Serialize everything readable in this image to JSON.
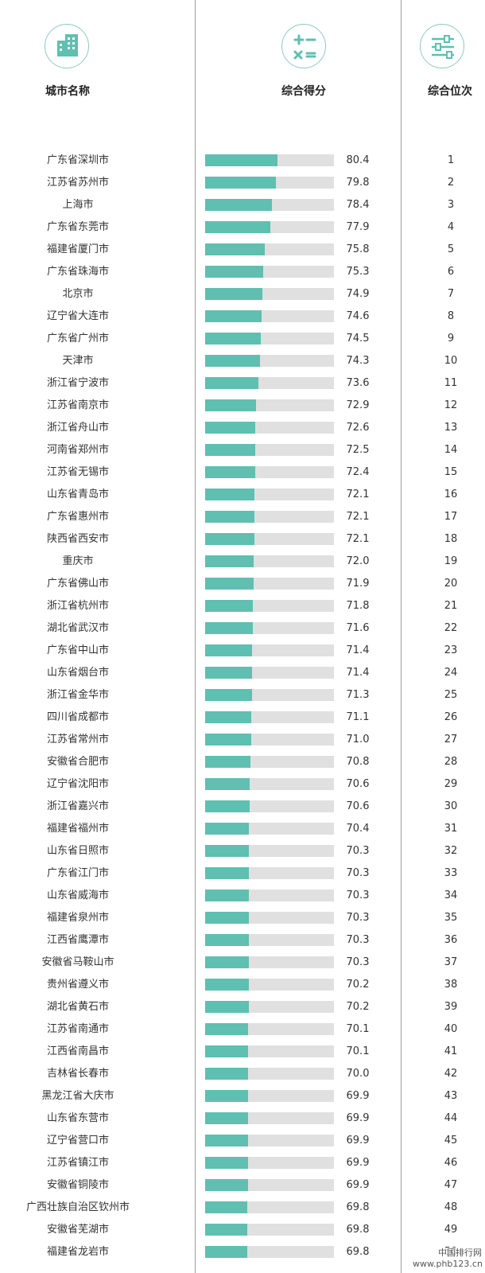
{
  "header": {
    "city_label": "城市名称",
    "score_label": "综合得分",
    "rank_label": "综合位次",
    "city_icon": "building-icon",
    "score_icon": "calculator-icon",
    "rank_icon": "sliders-icon"
  },
  "colors": {
    "bar": "#5fbfb0",
    "bar_background": "#e0e0e0",
    "icon": "#5fbfb0"
  },
  "watermark": {
    "line1": "中国排行网",
    "line2": "www.phb123.cn"
  },
  "chart_data": {
    "type": "bar",
    "orientation": "horizontal",
    "title": "",
    "xlabel": "综合得分",
    "ylabel": "城市名称",
    "xlim": [
      55,
      100
    ],
    "categories": [
      "广东省深圳市",
      "江苏省苏州市",
      "上海市",
      "广东省东莞市",
      "福建省厦门市",
      "广东省珠海市",
      "北京市",
      "辽宁省大连市",
      "广东省广州市",
      "天津市",
      "浙江省宁波市",
      "江苏省南京市",
      "浙江省舟山市",
      "河南省郑州市",
      "江苏省无锡市",
      "山东省青岛市",
      "广东省惠州市",
      "陕西省西安市",
      "重庆市",
      "广东省佛山市",
      "浙江省杭州市",
      "湖北省武汉市",
      "广东省中山市",
      "山东省烟台市",
      "浙江省金华市",
      "四川省成都市",
      "江苏省常州市",
      "安徽省合肥市",
      "辽宁省沈阳市",
      "浙江省嘉兴市",
      "福建省福州市",
      "山东省日照市",
      "广东省江门市",
      "山东省威海市",
      "福建省泉州市",
      "江西省鹰潭市",
      "安徽省马鞍山市",
      "贵州省遵义市",
      "湖北省黄石市",
      "江苏省南通市",
      "江西省南昌市",
      "吉林省长春市",
      "黑龙江省大庆市",
      "山东省东营市",
      "辽宁省营口市",
      "江苏省镇江市",
      "安徽省铜陵市",
      "广西壮族自治区钦州市",
      "安徽省芜湖市",
      "福建省龙岩市"
    ],
    "values": [
      "80.4",
      "79.8",
      "78.4",
      "77.9",
      "75.8",
      "75.3",
      "74.9",
      "74.6",
      "74.5",
      "74.3",
      "73.6",
      "72.9",
      "72.6",
      "72.5",
      "72.4",
      "72.1",
      "72.1",
      "72.1",
      "72.0",
      "71.9",
      "71.8",
      "71.6",
      "71.4",
      "71.4",
      "71.3",
      "71.1",
      "71.0",
      "70.8",
      "70.6",
      "70.6",
      "70.4",
      "70.3",
      "70.3",
      "70.3",
      "70.3",
      "70.3",
      "70.3",
      "70.2",
      "70.2",
      "70.1",
      "70.1",
      "70.0",
      "69.9",
      "69.9",
      "69.9",
      "69.9",
      "69.9",
      "69.8",
      "69.8",
      "69.8"
    ],
    "ranks": [
      "1",
      "2",
      "3",
      "4",
      "5",
      "6",
      "7",
      "8",
      "9",
      "10",
      "11",
      "12",
      "13",
      "14",
      "15",
      "16",
      "17",
      "18",
      "19",
      "20",
      "21",
      "22",
      "23",
      "24",
      "25",
      "26",
      "27",
      "28",
      "29",
      "30",
      "31",
      "32",
      "33",
      "34",
      "35",
      "36",
      "37",
      "38",
      "39",
      "40",
      "41",
      "42",
      "43",
      "44",
      "45",
      "46",
      "47",
      "48",
      "49",
      "50"
    ]
  }
}
